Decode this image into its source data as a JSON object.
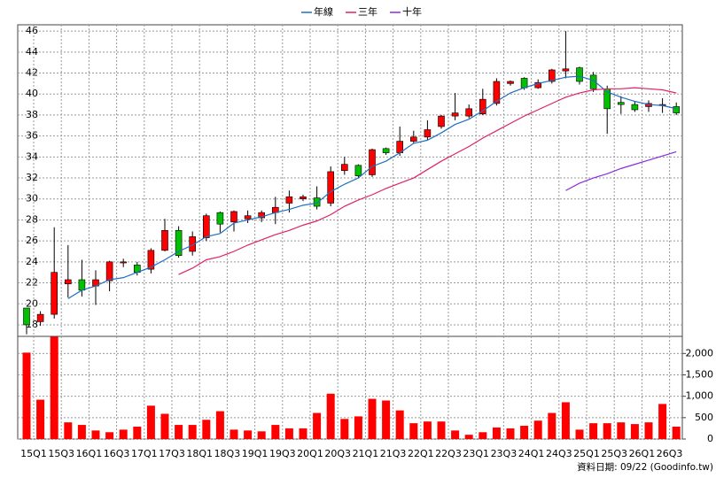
{
  "chart_data": {
    "type": "candlestick",
    "legend": "top",
    "grid": true,
    "categories": [
      "15Q1",
      null,
      "15Q3",
      null,
      "16Q1",
      null,
      "16Q3",
      null,
      "17Q1",
      null,
      "17Q3",
      null,
      "18Q1",
      null,
      "18Q3",
      null,
      "19Q1",
      null,
      "19Q3",
      null,
      "20Q1",
      null,
      "20Q3",
      null,
      "21Q1",
      null,
      "21Q3",
      null,
      "22Q1",
      null,
      "22Q3",
      null,
      "23Q1",
      null,
      "23Q3",
      null,
      "24Q1",
      null,
      "24Q3",
      null,
      "25Q1",
      null,
      "25Q3",
      null,
      "26Q1",
      null,
      "26Q3",
      null
    ],
    "open": [
      19.6,
      18.3,
      19.0,
      21.9,
      22.3,
      21.7,
      22.2,
      23.9,
      23.7,
      23.3,
      25.1,
      27.0,
      25.0,
      26.3,
      28.7,
      27.8,
      28.1,
      28.2,
      28.7,
      29.6,
      30.0,
      30.1,
      29.6,
      32.7,
      33.2,
      32.3,
      34.8,
      34.4,
      35.5,
      35.9,
      36.9,
      37.9,
      37.9,
      38.1,
      39.1,
      41.0,
      41.5,
      40.6,
      41.2,
      42.2,
      42.5,
      41.8,
      40.5,
      39.2,
      39.0,
      38.8,
      38.9,
      38.8
    ],
    "high": [
      19.6,
      19.3,
      27.3,
      25.6,
      24.2,
      23.2,
      24.1,
      24.3,
      24.0,
      25.3,
      28.1,
      27.4,
      26.9,
      28.6,
      28.8,
      28.9,
      28.9,
      28.9,
      30.2,
      30.8,
      30.4,
      31.2,
      33.1,
      34.0,
      33.3,
      34.8,
      34.9,
      36.9,
      36.5,
      37.5,
      38.0,
      40.1,
      39.0,
      40.5,
      41.5,
      41.3,
      41.6,
      41.4,
      42.4,
      46.0,
      42.6,
      42.1,
      40.8,
      39.8,
      39.3,
      39.4,
      39.6,
      39.2
    ],
    "low": [
      17.1,
      17.9,
      18.6,
      20.6,
      20.7,
      19.9,
      21.2,
      23.5,
      22.7,
      22.9,
      25.0,
      24.4,
      24.6,
      26.0,
      26.8,
      26.9,
      27.7,
      27.8,
      27.6,
      28.7,
      29.8,
      29.0,
      29.3,
      32.3,
      32.0,
      32.1,
      34.2,
      34.1,
      35.3,
      35.6,
      36.7,
      37.5,
      37.7,
      38.0,
      38.9,
      40.8,
      40.4,
      40.5,
      41.0,
      41.5,
      40.9,
      40.2,
      36.2,
      38.1,
      38.3,
      38.3,
      38.2,
      38.0
    ],
    "close": [
      18.0,
      19.0,
      23.0,
      22.3,
      21.3,
      22.3,
      24.0,
      24.0,
      23.0,
      25.1,
      27.0,
      24.6,
      26.4,
      28.4,
      27.6,
      28.8,
      28.4,
      28.7,
      29.2,
      30.2,
      30.2,
      29.3,
      32.6,
      33.3,
      32.2,
      34.7,
      34.4,
      35.5,
      35.9,
      36.6,
      37.9,
      38.2,
      38.6,
      39.5,
      41.2,
      41.2,
      40.6,
      41.1,
      42.3,
      42.4,
      41.2,
      40.5,
      38.6,
      39.0,
      38.5,
      39.1,
      39.0,
      38.2
    ],
    "up_color": "#ff0000",
    "down_color": "#00c000",
    "ylim": [
      16.9,
      46.6
    ],
    "yticks": [
      18,
      20,
      22,
      24,
      26,
      28,
      30,
      32,
      34,
      36,
      38,
      40,
      42,
      44,
      46
    ],
    "series": [
      {
        "name": "年線",
        "color": "#1f6fbf",
        "values": [
          null,
          null,
          null,
          20.5,
          21.3,
          21.7,
          22.3,
          22.5,
          23.0,
          23.5,
          24.2,
          25.0,
          25.6,
          26.4,
          26.7,
          27.7,
          28.0,
          28.3,
          28.7,
          29.0,
          29.4,
          29.6,
          30.7,
          31.4,
          32.0,
          33.1,
          33.6,
          34.4,
          35.3,
          35.6,
          36.3,
          37.1,
          37.6,
          38.4,
          39.3,
          40.1,
          40.6,
          41.0,
          41.3,
          41.6,
          41.7,
          41.3,
          40.2,
          39.7,
          39.3,
          39.0,
          38.9,
          38.6
        ]
      },
      {
        "name": "三年",
        "color": "#e0206a",
        "values": [
          null,
          null,
          null,
          null,
          null,
          null,
          null,
          null,
          null,
          null,
          null,
          22.8,
          23.4,
          24.2,
          24.5,
          25.0,
          25.6,
          26.1,
          26.6,
          27.0,
          27.5,
          27.9,
          28.5,
          29.3,
          29.9,
          30.4,
          31.0,
          31.5,
          32.0,
          32.8,
          33.6,
          34.3,
          35.0,
          35.8,
          36.5,
          37.2,
          37.9,
          38.5,
          39.1,
          39.7,
          40.1,
          40.4,
          40.5,
          40.5,
          40.6,
          40.5,
          40.4,
          40.1
        ]
      },
      {
        "name": "十年",
        "color": "#8a2be2",
        "values": [
          null,
          null,
          null,
          null,
          null,
          null,
          null,
          null,
          null,
          null,
          null,
          null,
          null,
          null,
          null,
          null,
          null,
          null,
          null,
          null,
          null,
          null,
          null,
          null,
          null,
          null,
          null,
          null,
          null,
          null,
          null,
          null,
          null,
          null,
          null,
          null,
          null,
          null,
          null,
          30.8,
          31.5,
          32.0,
          32.4,
          32.9,
          33.3,
          33.7,
          34.1,
          34.5
        ]
      }
    ],
    "volume": {
      "color": "#ff0000",
      "values": [
        2020,
        920,
        2390,
        390,
        330,
        200,
        160,
        220,
        290,
        780,
        590,
        330,
        330,
        450,
        650,
        220,
        200,
        180,
        330,
        250,
        250,
        610,
        1060,
        470,
        530,
        940,
        900,
        670,
        370,
        410,
        410,
        200,
        100,
        160,
        270,
        250,
        310,
        430,
        610,
        860,
        220,
        370,
        370,
        390,
        350,
        390,
        820,
        290
      ],
      "ylim": [
        0,
        2400
      ],
      "yticks": [
        0,
        500,
        {
          "value": 1000,
          "label": "1,000"
        },
        {
          "value": 1500,
          "label": "1,500"
        },
        {
          "value": 2000,
          "label": "2,000"
        }
      ]
    },
    "footnote": "資料日期: 09/22  (Goodinfo.tw)"
  }
}
